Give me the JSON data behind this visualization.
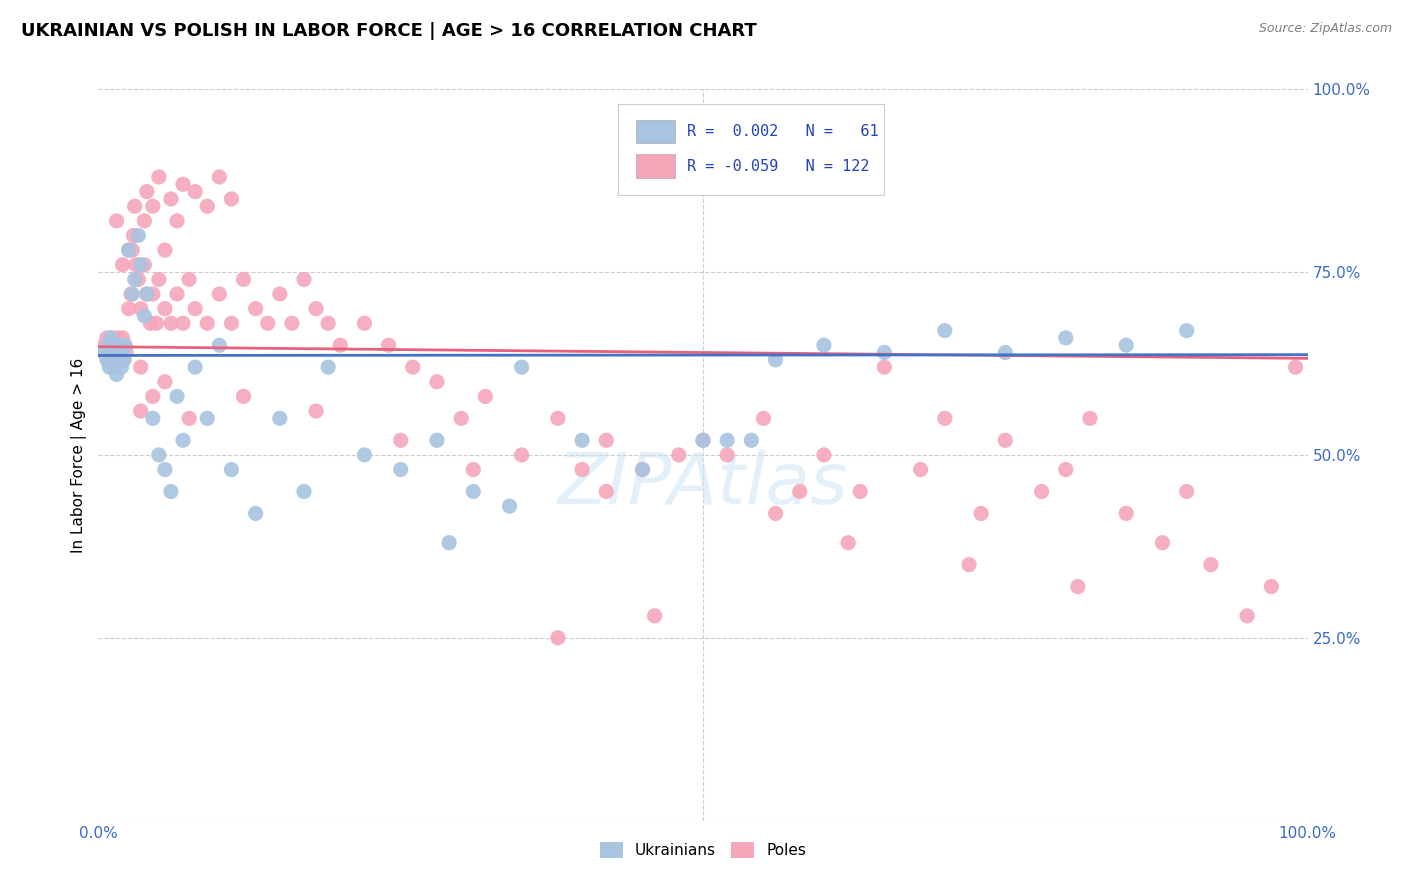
{
  "title": "UKRAINIAN VS POLISH IN LABOR FORCE | AGE > 16 CORRELATION CHART",
  "source": "Source: ZipAtlas.com",
  "ylabel": "In Labor Force | Age > 16",
  "xlim": [
    0.0,
    1.0
  ],
  "ylim": [
    0.0,
    1.0
  ],
  "blue_color": "#a8c4e0",
  "pink_color": "#f4a7b9",
  "blue_line_color": "#4472c4",
  "pink_line_color": "#e8607a",
  "watermark": "ZIPAtlas",
  "blue_R": 0.002,
  "blue_N": 61,
  "pink_R": -0.059,
  "pink_N": 122,
  "blue_scatter_x": [
    0.005,
    0.007,
    0.008,
    0.009,
    0.01,
    0.01,
    0.011,
    0.012,
    0.013,
    0.013,
    0.014,
    0.015,
    0.015,
    0.016,
    0.017,
    0.018,
    0.019,
    0.02,
    0.021,
    0.022,
    0.025,
    0.028,
    0.03,
    0.033,
    0.035,
    0.038,
    0.04,
    0.045,
    0.05,
    0.055,
    0.06,
    0.065,
    0.07,
    0.08,
    0.09,
    0.1,
    0.11,
    0.13,
    0.15,
    0.17,
    0.19,
    0.22,
    0.25,
    0.28,
    0.31,
    0.35,
    0.4,
    0.45,
    0.5,
    0.52,
    0.54,
    0.56,
    0.6,
    0.65,
    0.7,
    0.75,
    0.8,
    0.85,
    0.9,
    0.34,
    0.29
  ],
  "blue_scatter_y": [
    0.64,
    0.63,
    0.65,
    0.62,
    0.64,
    0.66,
    0.63,
    0.65,
    0.62,
    0.64,
    0.63,
    0.65,
    0.61,
    0.64,
    0.63,
    0.65,
    0.62,
    0.64,
    0.63,
    0.65,
    0.78,
    0.72,
    0.74,
    0.8,
    0.76,
    0.69,
    0.72,
    0.55,
    0.5,
    0.48,
    0.45,
    0.58,
    0.52,
    0.62,
    0.55,
    0.65,
    0.48,
    0.42,
    0.55,
    0.45,
    0.62,
    0.5,
    0.48,
    0.52,
    0.45,
    0.62,
    0.52,
    0.48,
    0.52,
    0.52,
    0.52,
    0.63,
    0.65,
    0.64,
    0.67,
    0.64,
    0.66,
    0.65,
    0.67,
    0.43,
    0.38
  ],
  "pink_scatter_x": [
    0.005,
    0.006,
    0.007,
    0.008,
    0.008,
    0.009,
    0.01,
    0.01,
    0.011,
    0.011,
    0.012,
    0.012,
    0.013,
    0.013,
    0.014,
    0.015,
    0.015,
    0.016,
    0.016,
    0.017,
    0.018,
    0.019,
    0.02,
    0.021,
    0.022,
    0.023,
    0.025,
    0.027,
    0.029,
    0.031,
    0.033,
    0.035,
    0.038,
    0.04,
    0.043,
    0.045,
    0.048,
    0.05,
    0.055,
    0.06,
    0.065,
    0.07,
    0.075,
    0.08,
    0.09,
    0.1,
    0.11,
    0.12,
    0.13,
    0.14,
    0.15,
    0.16,
    0.17,
    0.18,
    0.19,
    0.2,
    0.22,
    0.24,
    0.26,
    0.28,
    0.3,
    0.32,
    0.35,
    0.38,
    0.4,
    0.42,
    0.45,
    0.48,
    0.5,
    0.52,
    0.55,
    0.58,
    0.6,
    0.63,
    0.65,
    0.68,
    0.7,
    0.73,
    0.75,
    0.78,
    0.8,
    0.82,
    0.85,
    0.88,
    0.9,
    0.92,
    0.95,
    0.97,
    0.99,
    0.03,
    0.04,
    0.05,
    0.06,
    0.07,
    0.08,
    0.09,
    0.1,
    0.11,
    0.035,
    0.025,
    0.015,
    0.02,
    0.065,
    0.055,
    0.045,
    0.038,
    0.028,
    0.045,
    0.035,
    0.055,
    0.075,
    0.12,
    0.18,
    0.25,
    0.31,
    0.42,
    0.56,
    0.62,
    0.72,
    0.81,
    0.46,
    0.38
  ],
  "pink_scatter_y": [
    0.65,
    0.64,
    0.66,
    0.63,
    0.65,
    0.64,
    0.63,
    0.65,
    0.64,
    0.66,
    0.63,
    0.65,
    0.62,
    0.64,
    0.65,
    0.63,
    0.65,
    0.64,
    0.66,
    0.63,
    0.65,
    0.64,
    0.66,
    0.63,
    0.65,
    0.64,
    0.78,
    0.72,
    0.8,
    0.76,
    0.74,
    0.7,
    0.76,
    0.72,
    0.68,
    0.72,
    0.68,
    0.74,
    0.7,
    0.68,
    0.72,
    0.68,
    0.74,
    0.7,
    0.68,
    0.72,
    0.68,
    0.74,
    0.7,
    0.68,
    0.72,
    0.68,
    0.74,
    0.7,
    0.68,
    0.65,
    0.68,
    0.65,
    0.62,
    0.6,
    0.55,
    0.58,
    0.5,
    0.55,
    0.48,
    0.52,
    0.48,
    0.5,
    0.52,
    0.5,
    0.55,
    0.45,
    0.5,
    0.45,
    0.62,
    0.48,
    0.55,
    0.42,
    0.52,
    0.45,
    0.48,
    0.55,
    0.42,
    0.38,
    0.45,
    0.35,
    0.28,
    0.32,
    0.62,
    0.84,
    0.86,
    0.88,
    0.85,
    0.87,
    0.86,
    0.84,
    0.88,
    0.85,
    0.62,
    0.7,
    0.82,
    0.76,
    0.82,
    0.78,
    0.84,
    0.82,
    0.78,
    0.58,
    0.56,
    0.6,
    0.55,
    0.58,
    0.56,
    0.52,
    0.48,
    0.45,
    0.42,
    0.38,
    0.35,
    0.32,
    0.28,
    0.25
  ]
}
